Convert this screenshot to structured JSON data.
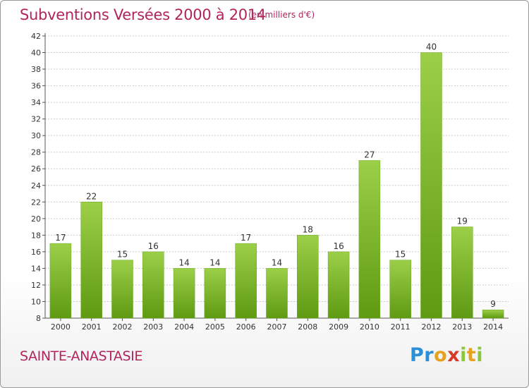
{
  "header": {
    "title": "Subventions Versées 2000 à 2014",
    "unit_note": "(en milliers d'€)"
  },
  "footer": {
    "town": "SAINTE-ANASTASIE",
    "logo_text": "Proxiti"
  },
  "colors": {
    "title": "#b0255a",
    "bar_top": "#9ccf48",
    "bar_bottom": "#5e9a12",
    "grid": "#cccccc"
  },
  "chart_data": {
    "type": "bar",
    "title": "Subventions Versées 2000 à 2014",
    "subtitle": "(en milliers d'€)",
    "xlabel": "",
    "ylabel": "",
    "categories": [
      "2000",
      "2001",
      "2002",
      "2003",
      "2004",
      "2005",
      "2006",
      "2007",
      "2008",
      "2009",
      "2010",
      "2011",
      "2012",
      "2013",
      "2014"
    ],
    "values": [
      17,
      22,
      15,
      16,
      14,
      14,
      17,
      14,
      18,
      16,
      27,
      15,
      40,
      19,
      9
    ],
    "ylim": [
      8,
      42
    ],
    "yticks": [
      8,
      10,
      12,
      14,
      16,
      18,
      20,
      22,
      24,
      26,
      28,
      30,
      32,
      34,
      36,
      38,
      40,
      42
    ],
    "grid": true,
    "legend": "none"
  }
}
